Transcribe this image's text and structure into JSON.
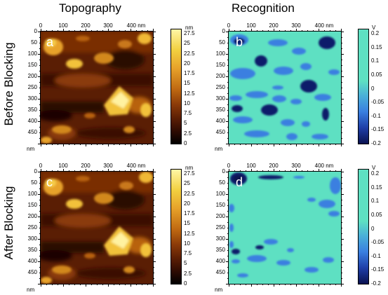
{
  "columns": {
    "left": "Topography",
    "right": "Recognition"
  },
  "rows": {
    "top": "Before Blocking",
    "bottom": "After Blocking"
  },
  "panels": {
    "a": "a",
    "b": "b",
    "c": "c",
    "d": "d"
  },
  "axis": {
    "x_ticks": [
      "0",
      "100",
      "200",
      "300",
      "400 nm"
    ],
    "y_ticks": [
      "0",
      "50",
      "100",
      "150",
      "200",
      "250",
      "300",
      "350",
      "400",
      "450"
    ],
    "y_unit": "nm"
  },
  "topo_colorbar": {
    "unit": "nm",
    "ticks": [
      "27.5",
      "25",
      "22.5",
      "20",
      "17.5",
      "15",
      "12.5",
      "10",
      "7.5",
      "5",
      "2.5",
      "0"
    ]
  },
  "recog_colorbar": {
    "unit": "V",
    "ticks": [
      "0.2",
      "0.15",
      "0.1",
      "0.05",
      "0",
      "-0.05",
      "-0.1",
      "-0.15",
      "-0.2"
    ]
  },
  "colors": {
    "topo_dark": "#1a0500",
    "topo_mid": "#8a3a08",
    "topo_high": "#f2c23a",
    "topo_peak": "#fff2a0",
    "recog_bg": "#5ee0c2",
    "recog_mid": "#3a7fe0",
    "recog_dark": "#101c6a"
  }
}
